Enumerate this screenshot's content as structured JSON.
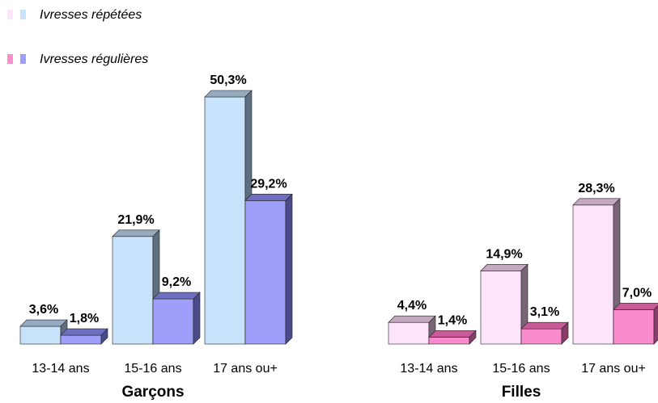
{
  "chart_data": {
    "type": "bar",
    "legend": [
      {
        "label": "Ivresses répétées",
        "colors": [
          "#fde4fb",
          "#c7e2fb"
        ]
      },
      {
        "label": "Ivresses régulières",
        "colors": [
          "#f98ccd",
          "#9f9ffb"
        ]
      }
    ],
    "categories": [
      "13-14 ans",
      "15-16 ans",
      "17 ans ou+"
    ],
    "groups": [
      {
        "name": "Garçons",
        "series": [
          {
            "values": [
              3.6,
              21.9,
              50.3
            ],
            "labels": [
              "3,6%",
              "21,9%",
              "50,3%"
            ],
            "color": "#c7e2fb",
            "side": "#5d6f80",
            "top": "#94aabf"
          },
          {
            "values": [
              1.8,
              9.2,
              29.2
            ],
            "labels": [
              "1,8%",
              "9,2%",
              "29,2%"
            ],
            "color": "#9f9ffb",
            "side": "#4b4b8a",
            "top": "#6f6fc2"
          }
        ]
      },
      {
        "name": "Filles",
        "series": [
          {
            "values": [
              4.4,
              14.9,
              28.3
            ],
            "labels": [
              "4,4%",
              "14,9%",
              "28,3%"
            ],
            "color": "#fde4fb",
            "side": "#7a6478",
            "top": "#c4a9c1"
          },
          {
            "values": [
              1.4,
              3.1,
              7.0
            ],
            "labels": [
              "1,4%",
              "3,1%",
              "7,0%"
            ],
            "color": "#f98ccd",
            "side": "#8a3d6a",
            "top": "#c75a97"
          }
        ]
      }
    ],
    "ylim": [
      0,
      50.3
    ],
    "grid": false,
    "legend_position": "top-left"
  }
}
